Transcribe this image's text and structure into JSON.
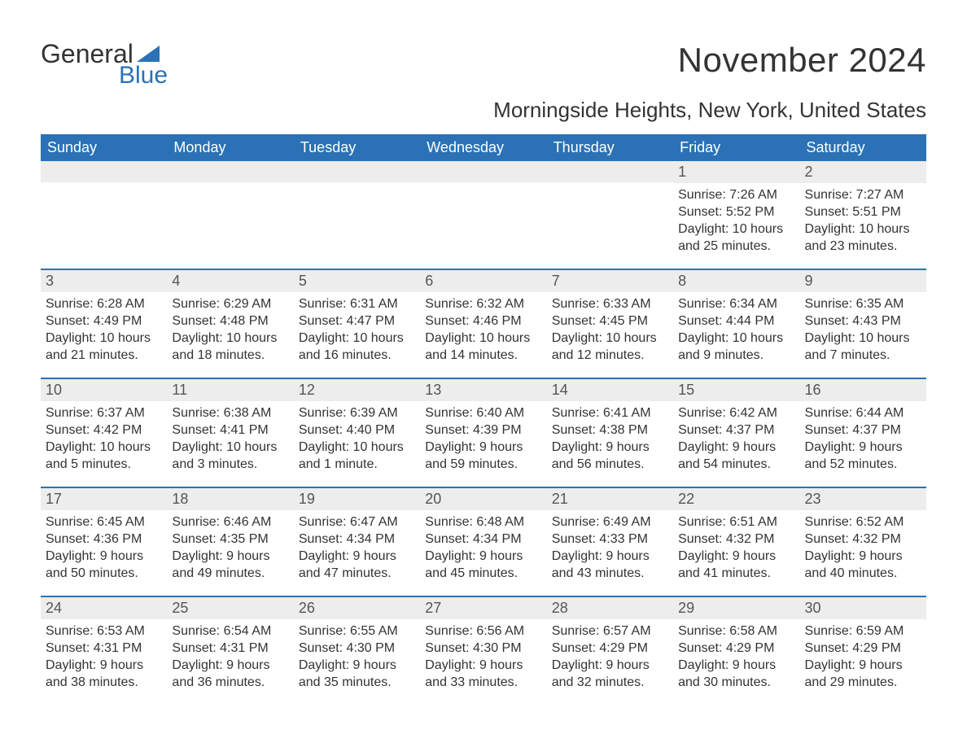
{
  "brand": {
    "text1": "General",
    "text2": "Blue",
    "accent_color": "#2a72b5"
  },
  "title": "November 2024",
  "location": "Morningside Heights, New York, United States",
  "colors": {
    "header_bg": "#2a72b5",
    "header_text": "#ffffff",
    "daynum_bg": "#ededed",
    "row_border": "#2a72b5",
    "body_text": "#333333"
  },
  "typography": {
    "title_fontsize": 42,
    "location_fontsize": 26,
    "weekday_fontsize": 18,
    "daynum_fontsize": 18,
    "detail_fontsize": 16
  },
  "weekdays": [
    "Sunday",
    "Monday",
    "Tuesday",
    "Wednesday",
    "Thursday",
    "Friday",
    "Saturday"
  ],
  "weeks": [
    [
      {
        "empty": true
      },
      {
        "empty": true
      },
      {
        "empty": true
      },
      {
        "empty": true
      },
      {
        "empty": true
      },
      {
        "day": "1",
        "sunrise": "Sunrise: 7:26 AM",
        "sunset": "Sunset: 5:52 PM",
        "daylight1": "Daylight: 10 hours",
        "daylight2": "and 25 minutes."
      },
      {
        "day": "2",
        "sunrise": "Sunrise: 7:27 AM",
        "sunset": "Sunset: 5:51 PM",
        "daylight1": "Daylight: 10 hours",
        "daylight2": "and 23 minutes."
      }
    ],
    [
      {
        "day": "3",
        "sunrise": "Sunrise: 6:28 AM",
        "sunset": "Sunset: 4:49 PM",
        "daylight1": "Daylight: 10 hours",
        "daylight2": "and 21 minutes."
      },
      {
        "day": "4",
        "sunrise": "Sunrise: 6:29 AM",
        "sunset": "Sunset: 4:48 PM",
        "daylight1": "Daylight: 10 hours",
        "daylight2": "and 18 minutes."
      },
      {
        "day": "5",
        "sunrise": "Sunrise: 6:31 AM",
        "sunset": "Sunset: 4:47 PM",
        "daylight1": "Daylight: 10 hours",
        "daylight2": "and 16 minutes."
      },
      {
        "day": "6",
        "sunrise": "Sunrise: 6:32 AM",
        "sunset": "Sunset: 4:46 PM",
        "daylight1": "Daylight: 10 hours",
        "daylight2": "and 14 minutes."
      },
      {
        "day": "7",
        "sunrise": "Sunrise: 6:33 AM",
        "sunset": "Sunset: 4:45 PM",
        "daylight1": "Daylight: 10 hours",
        "daylight2": "and 12 minutes."
      },
      {
        "day": "8",
        "sunrise": "Sunrise: 6:34 AM",
        "sunset": "Sunset: 4:44 PM",
        "daylight1": "Daylight: 10 hours",
        "daylight2": "and 9 minutes."
      },
      {
        "day": "9",
        "sunrise": "Sunrise: 6:35 AM",
        "sunset": "Sunset: 4:43 PM",
        "daylight1": "Daylight: 10 hours",
        "daylight2": "and 7 minutes."
      }
    ],
    [
      {
        "day": "10",
        "sunrise": "Sunrise: 6:37 AM",
        "sunset": "Sunset: 4:42 PM",
        "daylight1": "Daylight: 10 hours",
        "daylight2": "and 5 minutes."
      },
      {
        "day": "11",
        "sunrise": "Sunrise: 6:38 AM",
        "sunset": "Sunset: 4:41 PM",
        "daylight1": "Daylight: 10 hours",
        "daylight2": "and 3 minutes."
      },
      {
        "day": "12",
        "sunrise": "Sunrise: 6:39 AM",
        "sunset": "Sunset: 4:40 PM",
        "daylight1": "Daylight: 10 hours",
        "daylight2": "and 1 minute."
      },
      {
        "day": "13",
        "sunrise": "Sunrise: 6:40 AM",
        "sunset": "Sunset: 4:39 PM",
        "daylight1": "Daylight: 9 hours",
        "daylight2": "and 59 minutes."
      },
      {
        "day": "14",
        "sunrise": "Sunrise: 6:41 AM",
        "sunset": "Sunset: 4:38 PM",
        "daylight1": "Daylight: 9 hours",
        "daylight2": "and 56 minutes."
      },
      {
        "day": "15",
        "sunrise": "Sunrise: 6:42 AM",
        "sunset": "Sunset: 4:37 PM",
        "daylight1": "Daylight: 9 hours",
        "daylight2": "and 54 minutes."
      },
      {
        "day": "16",
        "sunrise": "Sunrise: 6:44 AM",
        "sunset": "Sunset: 4:37 PM",
        "daylight1": "Daylight: 9 hours",
        "daylight2": "and 52 minutes."
      }
    ],
    [
      {
        "day": "17",
        "sunrise": "Sunrise: 6:45 AM",
        "sunset": "Sunset: 4:36 PM",
        "daylight1": "Daylight: 9 hours",
        "daylight2": "and 50 minutes."
      },
      {
        "day": "18",
        "sunrise": "Sunrise: 6:46 AM",
        "sunset": "Sunset: 4:35 PM",
        "daylight1": "Daylight: 9 hours",
        "daylight2": "and 49 minutes."
      },
      {
        "day": "19",
        "sunrise": "Sunrise: 6:47 AM",
        "sunset": "Sunset: 4:34 PM",
        "daylight1": "Daylight: 9 hours",
        "daylight2": "and 47 minutes."
      },
      {
        "day": "20",
        "sunrise": "Sunrise: 6:48 AM",
        "sunset": "Sunset: 4:34 PM",
        "daylight1": "Daylight: 9 hours",
        "daylight2": "and 45 minutes."
      },
      {
        "day": "21",
        "sunrise": "Sunrise: 6:49 AM",
        "sunset": "Sunset: 4:33 PM",
        "daylight1": "Daylight: 9 hours",
        "daylight2": "and 43 minutes."
      },
      {
        "day": "22",
        "sunrise": "Sunrise: 6:51 AM",
        "sunset": "Sunset: 4:32 PM",
        "daylight1": "Daylight: 9 hours",
        "daylight2": "and 41 minutes."
      },
      {
        "day": "23",
        "sunrise": "Sunrise: 6:52 AM",
        "sunset": "Sunset: 4:32 PM",
        "daylight1": "Daylight: 9 hours",
        "daylight2": "and 40 minutes."
      }
    ],
    [
      {
        "day": "24",
        "sunrise": "Sunrise: 6:53 AM",
        "sunset": "Sunset: 4:31 PM",
        "daylight1": "Daylight: 9 hours",
        "daylight2": "and 38 minutes."
      },
      {
        "day": "25",
        "sunrise": "Sunrise: 6:54 AM",
        "sunset": "Sunset: 4:31 PM",
        "daylight1": "Daylight: 9 hours",
        "daylight2": "and 36 minutes."
      },
      {
        "day": "26",
        "sunrise": "Sunrise: 6:55 AM",
        "sunset": "Sunset: 4:30 PM",
        "daylight1": "Daylight: 9 hours",
        "daylight2": "and 35 minutes."
      },
      {
        "day": "27",
        "sunrise": "Sunrise: 6:56 AM",
        "sunset": "Sunset: 4:30 PM",
        "daylight1": "Daylight: 9 hours",
        "daylight2": "and 33 minutes."
      },
      {
        "day": "28",
        "sunrise": "Sunrise: 6:57 AM",
        "sunset": "Sunset: 4:29 PM",
        "daylight1": "Daylight: 9 hours",
        "daylight2": "and 32 minutes."
      },
      {
        "day": "29",
        "sunrise": "Sunrise: 6:58 AM",
        "sunset": "Sunset: 4:29 PM",
        "daylight1": "Daylight: 9 hours",
        "daylight2": "and 30 minutes."
      },
      {
        "day": "30",
        "sunrise": "Sunrise: 6:59 AM",
        "sunset": "Sunset: 4:29 PM",
        "daylight1": "Daylight: 9 hours",
        "daylight2": "and 29 minutes."
      }
    ]
  ]
}
